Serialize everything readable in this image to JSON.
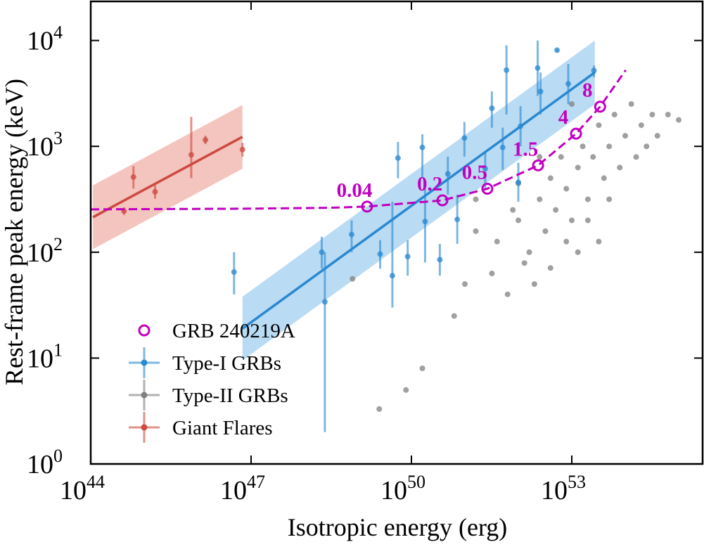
{
  "chart_data": {
    "type": "scatter",
    "xlabel": "Isotropic energy (erg)",
    "ylabel": "Rest-frame peak energy (keV)",
    "xscale": "log",
    "yscale": "log",
    "xlim": [
      1e+44,
      2.8e+55
    ],
    "ylim": [
      1,
      23400
    ],
    "xticks": [
      {
        "value": 1e+44,
        "label": "10",
        "exponent": "44"
      },
      {
        "value": 1e+47,
        "label": "10",
        "exponent": "47"
      },
      {
        "value": 1e+50,
        "label": "10",
        "exponent": "50"
      },
      {
        "value": 1e+53,
        "label": "10",
        "exponent": "53"
      }
    ],
    "yticks": [
      {
        "value": 1,
        "label": "10",
        "exponent": "0"
      },
      {
        "value": 10,
        "label": "10",
        "exponent": "1"
      },
      {
        "value": 100,
        "label": "10",
        "exponent": "2"
      },
      {
        "value": 1000,
        "label": "10",
        "exponent": "3"
      },
      {
        "value": 10000,
        "label": "10",
        "exponent": "4"
      }
    ],
    "legend": "lower left",
    "series": [
      {
        "name": "GRB 240219A",
        "color": "#c000c0",
        "marker": "open-circle",
        "x": [
          1.48e+49,
          3.8e+50,
          2.63e+51,
          2.34e+52,
          1.2e+53,
          3.39e+53
        ],
        "values": [
          270,
          309,
          398,
          661,
          1318,
          2371
        ],
        "point_labels": [
          "0.04",
          "0.2",
          "0.5",
          "1.5",
          "4",
          "8"
        ],
        "curve_x": [
          1e+44,
          1e+47,
          3.16e+48,
          1.48e+49,
          3.8e+50,
          2.63e+51,
          2.34e+52,
          1.2e+53,
          3.39e+53,
          1.02e+54
        ],
        "curve_y": [
          254,
          258,
          263,
          270,
          309,
          398,
          661,
          1318,
          2371,
          5250
        ]
      },
      {
        "name": "Type-I GRBs",
        "color": "#2a88d0",
        "band_color": "#a3cff0",
        "x": [
          4.8e+46,
          2.4e+48,
          2.1e+48,
          7.6e+48,
          2.6e+49,
          5.6e+49,
          8.5e+49,
          1.6e+50,
          1.8e+50,
          4.8e+50,
          9.8e+50,
          3.2e+51,
          5.1e+51,
          2.4e+51,
          6e+51,
          2.3e+52,
          2.6e+52,
          5.3e+52,
          8.6e+52,
          2.6e+53,
          1e+52,
          7.2e+50,
          3.4e+50,
          4.4e+49,
          1.1e+52
        ],
        "values": [
          65,
          34,
          100,
          147,
          96,
          776,
          91,
          977,
          195,
          550,
          1200,
          2290,
          977,
          617,
          5250,
          5500,
          3300,
          8100,
          3900,
          5200,
          457,
          204,
          85,
          60,
          1550
        ],
        "ylow": [
          40,
          2,
          70,
          100,
          70,
          500,
          60,
          500,
          80,
          350,
          800,
          1500,
          600,
          400,
          2000,
          3000,
          2000,
          7800,
          2500,
          4500,
          300,
          120,
          60,
          30,
          1000
        ],
        "yhigh": [
          100,
          100,
          140,
          200,
          130,
          1100,
          130,
          1300,
          400,
          800,
          1700,
          3300,
          1500,
          900,
          9000,
          10000,
          5000,
          8400,
          6000,
          5800,
          700,
          350,
          120,
          300,
          2400
        ],
        "fit_x": [
          6.9e+46,
          2.7e+53
        ],
        "fit_y": [
          19,
          5000
        ],
        "fit_ylow": [
          9.5,
          2500
        ],
        "fit_yhigh": [
          38,
          10000
        ]
      },
      {
        "name": "Type-II GRBs",
        "color": "#808080",
        "band_color": "#d6d6d6",
        "x": [
          1e+52,
          1.6e+52,
          2.5e+52,
          3.2e+52,
          4e+52,
          5e+52,
          6.3e+52,
          7.9e+52,
          1e+53,
          1.3e+53,
          1.6e+53,
          2e+53,
          2.5e+53,
          3.2e+53,
          4e+53,
          5e+53,
          6.3e+53,
          7.9e+53,
          1e+54,
          1.3e+54,
          1.6e+54,
          2e+54,
          2.5e+54,
          3.2e+54,
          4e+54,
          6.3e+54,
          1e+55,
          3.2e+51,
          4e+51,
          6.3e+51,
          7.9e+51,
          1.3e+52,
          2e+52,
          2.5e+52,
          4e+52,
          7.9e+52,
          1.3e+53,
          2e+53,
          3.2e+53,
          5e+53,
          1e+51,
          1.6e+51,
          6.3e+50,
          7.9e+49,
          2.5e+49,
          7.9e+48,
          1.6e+50,
          1.6e+51,
          1e+52,
          1e+53
        ],
        "values": [
          200,
          100,
          316,
          158,
          501,
          251,
          794,
          398,
          200,
          631,
          1000,
          316,
          794,
          1585,
          501,
          1000,
          1995,
          631,
          1259,
          2512,
          794,
          1585,
          1000,
          1995,
          1259,
          1995,
          1778,
          63,
          126,
          40,
          251,
          79,
          50,
          794,
          71,
          126,
          100,
          200,
          126,
          316,
          50,
          158,
          25,
          5,
          3.3,
          56,
          8,
          316,
          447,
          2512
        ]
      },
      {
        "name": "Giant Flares",
        "color": "#cc4a3f",
        "band_color": "#f0b0aa",
        "x": [
          6.3e+44,
          1.6e+45,
          4.2e+44,
          7.6e+45,
          1.4e+46,
          6.9e+46
        ],
        "values": [
          513,
          372,
          245,
          832,
          1150,
          933
        ],
        "ylow": [
          400,
          320,
          225,
          500,
          1050,
          800
        ],
        "yhigh": [
          650,
          430,
          265,
          1900,
          1260,
          1080
        ],
        "fit_x": [
          1.1e+44,
          6.9e+46
        ],
        "fit_y": [
          214,
          1230
        ],
        "fit_ylow": [
          107,
          615
        ],
        "fit_yhigh": [
          428,
          2460
        ]
      }
    ]
  }
}
